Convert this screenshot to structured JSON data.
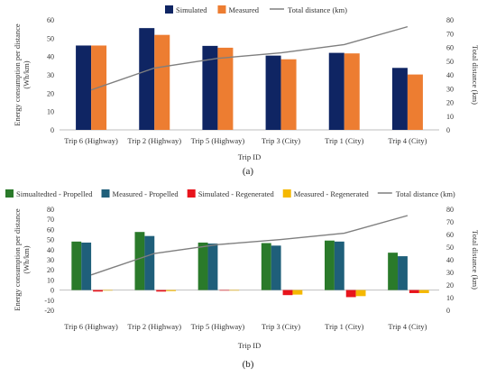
{
  "chart_data": [
    {
      "type": "bar",
      "panel_label": "(a)",
      "categories": [
        "Trip 6 (Highway)",
        "Trip 2 (Highway)",
        "Trip 5 (Highway)",
        "Trip 3 (City)",
        "Trip 1 (City)",
        "Trip 4 (City)"
      ],
      "series": [
        {
          "name": "Simulated",
          "type": "bar",
          "axis": "left",
          "color": "#0f2563",
          "values": [
            46,
            55.5,
            45.8,
            40.5,
            42,
            33.8
          ]
        },
        {
          "name": "Measured",
          "type": "bar",
          "axis": "left",
          "color": "#ed7d31",
          "values": [
            46,
            51.8,
            44.8,
            38.5,
            41.7,
            30.2
          ]
        },
        {
          "name": "Total distance (km)",
          "type": "line",
          "axis": "right",
          "color": "#7f7f7f",
          "values": [
            29,
            45,
            52,
            56,
            62,
            75
          ]
        }
      ],
      "xlabel": "Trip ID",
      "ylabel": "Energy consumption per distance (Wh/km)",
      "y2label": "Total distance (km)",
      "ylim": [
        0,
        60
      ],
      "yticks": [
        0,
        10,
        20,
        30,
        40,
        50,
        60
      ],
      "y2lim": [
        0,
        80
      ],
      "y2ticks": [
        0,
        10,
        20,
        30,
        40,
        50,
        60,
        70,
        80
      ],
      "legend_position": "top",
      "grid": false
    },
    {
      "type": "bar",
      "panel_label": "(b)",
      "categories": [
        "Trip 6 (Highway)",
        "Trip 2 (Highway)",
        "Trip 5 (Highway)",
        "Trip 3 (City)",
        "Trip 1 (City)",
        "Trip 4 (City)"
      ],
      "series": [
        {
          "name": "Simualtedted - Propelled",
          "type": "bar",
          "axis": "left",
          "color": "#2a7a2a",
          "values": [
            48,
            57.5,
            47,
            46.5,
            49,
            37
          ]
        },
        {
          "name": "Measured - Propelled",
          "type": "bar",
          "axis": "left",
          "color": "#1f5f7a",
          "values": [
            47,
            53.5,
            46,
            44,
            48,
            33.5
          ]
        },
        {
          "name": "Simulated - Regenerated",
          "type": "bar",
          "axis": "left",
          "color": "#e8141c",
          "values": [
            -1.5,
            -1.5,
            -0.5,
            -5,
            -7,
            -3
          ]
        },
        {
          "name": "Measured - Regenerated",
          "type": "bar",
          "axis": "left",
          "color": "#f5b800",
          "values": [
            -0.5,
            -1,
            -0.5,
            -4.5,
            -6,
            -3
          ]
        },
        {
          "name": "Total distance (km)",
          "type": "line",
          "axis": "right",
          "color": "#7f7f7f",
          "values": [
            28,
            45,
            52,
            56,
            61,
            75
          ]
        }
      ],
      "xlabel": "Trip ID",
      "ylabel": "Energy consumption per distance (Wh/km)",
      "y2label": "Total distance (km)",
      "ylim": [
        -20,
        80
      ],
      "yticks": [
        -20,
        -10,
        0,
        10,
        20,
        30,
        40,
        50,
        60,
        70,
        80
      ],
      "y2lim": [
        0,
        80
      ],
      "y2ticks": [
        0,
        10,
        20,
        30,
        40,
        50,
        60,
        70,
        80
      ],
      "legend_position": "top",
      "grid": false
    }
  ]
}
